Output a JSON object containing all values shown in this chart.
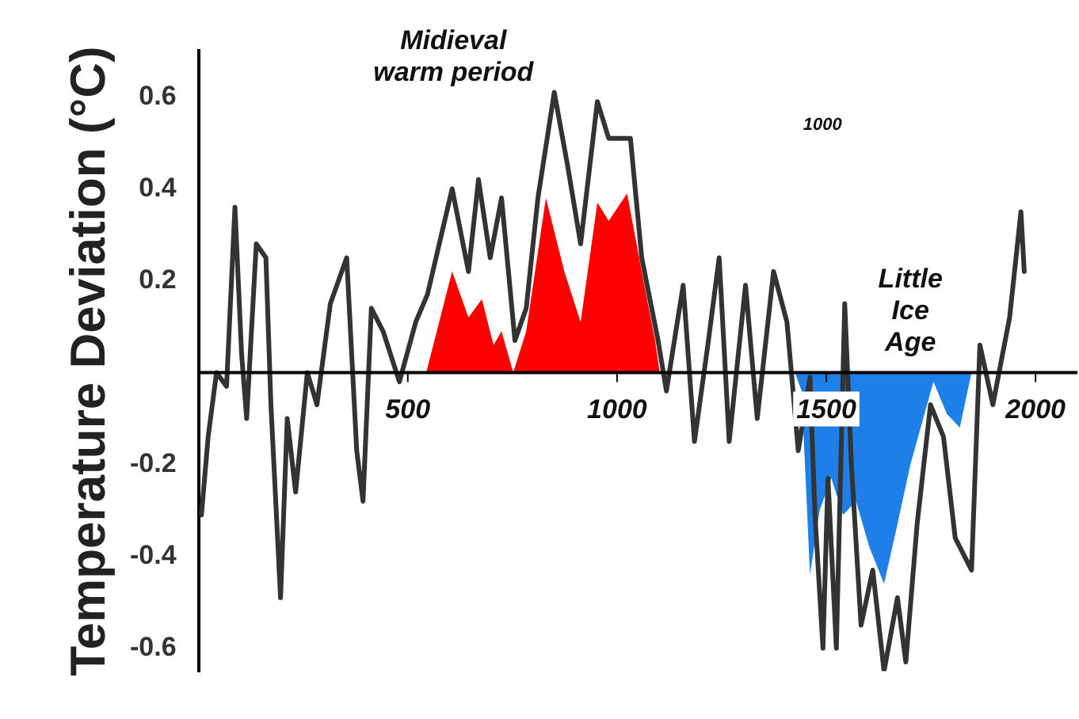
{
  "chart_data": {
    "type": "line",
    "ylabel": "Temperature Deviation (°C)",
    "xlim": [
      0,
      2100
    ],
    "xticks": [
      500,
      1000,
      1500,
      2000
    ],
    "ylim": [
      -0.65,
      0.7
    ],
    "yticks": [
      0.6,
      0.4,
      0.2,
      -0.2,
      -0.4,
      -0.6
    ],
    "grid": false,
    "legend": false,
    "series": [
      {
        "type": "line",
        "color": "#333333",
        "x": [
          7,
          23,
          43,
          67,
          87,
          103,
          115,
          138,
          161,
          173,
          196,
          212,
          232,
          260,
          283,
          315,
          354,
          378,
          393,
          413,
          441,
          480,
          519,
          547,
          606,
          645,
          669,
          697,
          724,
          756,
          783,
          811,
          850,
          882,
          913,
          953,
          980,
          1032,
          1059,
          1098,
          1118,
          1158,
          1185,
          1217,
          1244,
          1268,
          1307,
          1335,
          1374,
          1406,
          1433,
          1461,
          1473,
          1492,
          1504,
          1524,
          1544,
          1560,
          1583,
          1611,
          1638,
          1670,
          1690,
          1717,
          1749,
          1780,
          1808,
          1847,
          1867,
          1898,
          1938,
          1965,
          1973
        ],
        "values": [
          -0.31,
          -0.14,
          0,
          -0.03,
          0.36,
          0.04,
          -0.1,
          0.28,
          0.25,
          -0.07,
          -0.49,
          -0.1,
          -0.26,
          0,
          -0.07,
          0.15,
          0.25,
          -0.17,
          -0.28,
          0.14,
          0.09,
          -0.02,
          0.11,
          0.17,
          0.4,
          0.22,
          0.42,
          0.25,
          0.38,
          0.07,
          0.14,
          0.38,
          0.61,
          0.45,
          0.28,
          0.59,
          0.51,
          0.51,
          0.25,
          0.07,
          -0.04,
          0.19,
          -0.15,
          0.06,
          0.25,
          -0.15,
          0.19,
          -0.1,
          0.22,
          0.11,
          -0.17,
          -0.01,
          -0.31,
          -0.6,
          -0.23,
          -0.6,
          0.15,
          -0.2,
          -0.55,
          -0.43,
          -0.65,
          -0.49,
          -0.63,
          -0.33,
          -0.07,
          -0.14,
          -0.36,
          -0.43,
          0.06,
          -0.07,
          0.12,
          0.35,
          0.22
        ]
      },
      {
        "type": "area",
        "color": "#ff0000",
        "x": [
          544,
          606,
          645,
          677,
          705,
          724,
          752,
          783,
          830,
          874,
          913,
          953,
          980,
          1024,
          1059,
          1091,
          1102
        ],
        "values": [
          0,
          0.22,
          0.12,
          0.16,
          0.06,
          0.09,
          0,
          0.09,
          0.38,
          0.22,
          0.11,
          0.37,
          0.33,
          0.39,
          0.22,
          0.07,
          0
        ]
      },
      {
        "type": "area",
        "color": "#1e7fe8",
        "x": [
          1425,
          1441,
          1461,
          1484,
          1512,
          1540,
          1571,
          1603,
          1638,
          1670,
          1701,
          1756,
          1788,
          1819,
          1847
        ],
        "values": [
          0,
          -0.04,
          -0.44,
          -0.3,
          -0.23,
          -0.31,
          -0.28,
          -0.38,
          -0.46,
          -0.33,
          -0.2,
          -0.02,
          -0.09,
          -0.12,
          0
        ]
      }
    ],
    "annotations": [
      "Midieval warm period",
      "Little Ice Age",
      "1000"
    ]
  }
}
